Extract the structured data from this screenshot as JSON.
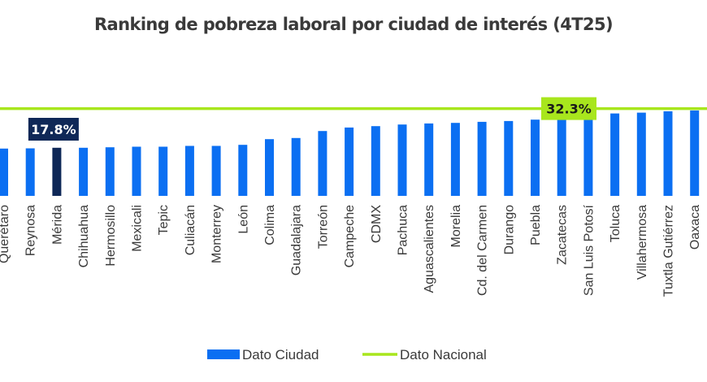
{
  "chart_data": {
    "type": "bar",
    "title": "Ranking de pobreza laboral por ciudad de interés (4T25)",
    "categories": [
      "Querétaro",
      "Reynosa",
      "Mérida",
      "Chihuahua",
      "Hermosillo",
      "Mexicali",
      "Tepic",
      "Culiacán",
      "Monterrey",
      "León",
      "Colima",
      "Guadalajara",
      "Torreón",
      "Campeche",
      "CDMX",
      "Pachuca",
      "Aguascalientes",
      "Morelia",
      "Cd. del Carmen",
      "Durango",
      "Puebla",
      "Zacatecas",
      "San Luis Potosí",
      "Toluca",
      "Villahermosa",
      "Tuxtla Gutiérrez",
      "Oaxaca"
    ],
    "values": [
      17.5,
      17.6,
      17.8,
      17.8,
      18.0,
      18.2,
      18.2,
      18.5,
      18.5,
      18.9,
      21.0,
      21.4,
      24.0,
      25.3,
      25.8,
      26.4,
      26.8,
      27.0,
      27.4,
      27.7,
      28.2,
      29.0,
      29.3,
      30.5,
      30.8,
      31.3,
      31.6
    ],
    "highlight_category": "Mérida",
    "highlight_label": "17.8%",
    "series": [
      {
        "name": "Dato Ciudad",
        "values": [
          17.5,
          17.6,
          17.8,
          17.8,
          18.0,
          18.2,
          18.2,
          18.5,
          18.5,
          18.9,
          21.0,
          21.4,
          24.0,
          25.3,
          25.8,
          26.4,
          26.8,
          27.0,
          27.4,
          27.7,
          28.2,
          29.0,
          29.3,
          30.5,
          30.8,
          31.3,
          31.6
        ]
      }
    ],
    "reference_line": {
      "name": "Dato Nacional",
      "value": 32.3,
      "label": "32.3%"
    },
    "ylim": [
      0,
      50
    ],
    "xlabel": "",
    "ylabel": "",
    "grid": false,
    "legend": {
      "position": "bottom",
      "entries": [
        "Dato Ciudad",
        "Dato Nacional"
      ]
    },
    "colors": {
      "bar": "#0b6ff2",
      "highlight_bar": "#0f2857",
      "national_line": "#a8e61d",
      "highlight_label_bg": "#0f2857",
      "highlight_label_text": "#ffffff",
      "national_label_bg": "#a8e61d",
      "national_label_text": "#1a1a1a"
    }
  }
}
